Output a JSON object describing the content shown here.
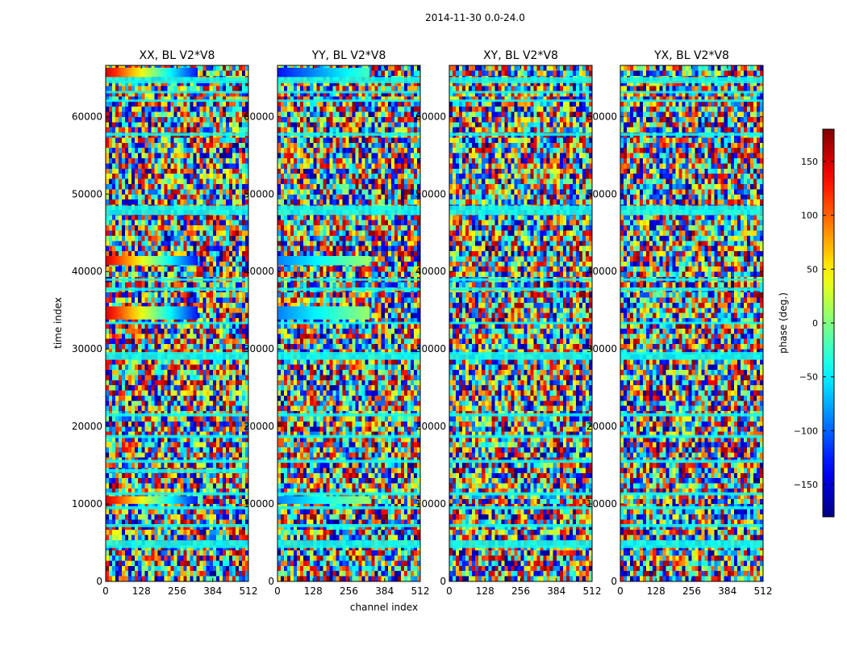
{
  "chart_data": {
    "type": "heatmap",
    "suptitle": "2014-11-30 0.0-24.0",
    "shared_xlabel": "channel index",
    "ylabel": "time index",
    "xlim": [
      0,
      512
    ],
    "ylim": [
      0,
      66600
    ],
    "x_ticks": [
      0,
      128,
      256,
      384,
      512
    ],
    "x_tick_labels": [
      "0",
      "128",
      "256",
      "384",
      "512"
    ],
    "y_ticks": [
      0,
      10000,
      20000,
      30000,
      40000,
      50000,
      60000
    ],
    "y_tick_labels": [
      "0",
      "10000",
      "20000",
      "30000",
      "40000",
      "50000",
      "60000"
    ],
    "panels": [
      {
        "title": "XX, BL V2*V8",
        "flag_bands": [
          [
            4300,
            5300,
            -40
          ],
          [
            7000,
            7400,
            -40
          ],
          [
            9300,
            9700,
            -40
          ],
          [
            11100,
            11500,
            -40
          ],
          [
            14000,
            14500,
            -40
          ],
          [
            15300,
            15700,
            -40
          ],
          [
            18500,
            18900,
            -40
          ],
          [
            21300,
            21700,
            -40
          ],
          [
            28600,
            29600,
            -40
          ],
          [
            33200,
            33500,
            -40
          ],
          [
            37500,
            37900,
            -40
          ],
          [
            38800,
            39100,
            -40
          ],
          [
            47300,
            48500,
            -40
          ],
          [
            57500,
            57900,
            -40
          ],
          [
            61900,
            62200,
            -40
          ],
          [
            63000,
            63300,
            -40
          ],
          [
            64300,
            65100,
            -40
          ]
        ],
        "gradient_bands": [
          {
            "t_range": [
              10000,
              11000
            ],
            "ch_range": [
              0,
              330
            ],
            "phase_start": 150,
            "phase_end": -130
          },
          {
            "t_range": [
              33800,
              35500
            ],
            "ch_range": [
              0,
              330
            ],
            "phase_start": 150,
            "phase_end": -130
          },
          {
            "t_range": [
              40800,
              42000
            ],
            "ch_range": [
              0,
              330
            ],
            "phase_start": 150,
            "phase_end": -130
          },
          {
            "t_range": [
              65100,
              66300
            ],
            "ch_range": [
              0,
              330
            ],
            "phase_start": 150,
            "phase_end": -130
          }
        ]
      },
      {
        "title": "YY, BL V2*V8",
        "flag_bands": [
          [
            4300,
            5300,
            -40
          ],
          [
            7000,
            7400,
            -40
          ],
          [
            9300,
            9700,
            -40
          ],
          [
            11100,
            11500,
            -40
          ],
          [
            15300,
            15700,
            -40
          ],
          [
            18500,
            18900,
            -40
          ],
          [
            21300,
            21700,
            -40
          ],
          [
            28600,
            29600,
            -40
          ],
          [
            33200,
            33500,
            -40
          ],
          [
            37500,
            37900,
            -40
          ],
          [
            38800,
            39100,
            -40
          ],
          [
            47300,
            48500,
            -40
          ],
          [
            57500,
            57900,
            -40
          ],
          [
            61900,
            62200,
            -40
          ],
          [
            63000,
            63300,
            -40
          ],
          [
            64300,
            65100,
            -40
          ]
        ],
        "gradient_bands": [
          {
            "t_range": [
              10000,
              11000
            ],
            "ch_range": [
              0,
              330
            ],
            "phase_start": -90,
            "phase_end": 10
          },
          {
            "t_range": [
              33800,
              35500
            ],
            "ch_range": [
              0,
              330
            ],
            "phase_start": -90,
            "phase_end": 10
          },
          {
            "t_range": [
              40800,
              42000
            ],
            "ch_range": [
              0,
              330
            ],
            "phase_start": -90,
            "phase_end": 10
          },
          {
            "t_range": [
              65100,
              66300
            ],
            "ch_range": [
              0,
              330
            ],
            "phase_start": -130,
            "phase_end": -20
          }
        ]
      },
      {
        "title": "XY, BL V2*V8",
        "flag_bands": [
          [
            4300,
            5300,
            -40
          ],
          [
            7000,
            7400,
            -40
          ],
          [
            9300,
            9700,
            -40
          ],
          [
            11100,
            11500,
            -40
          ],
          [
            15300,
            15700,
            -40
          ],
          [
            18500,
            18900,
            -40
          ],
          [
            21300,
            21700,
            -40
          ],
          [
            28600,
            29600,
            -40
          ],
          [
            33200,
            33500,
            -40
          ],
          [
            37500,
            37900,
            -40
          ],
          [
            38800,
            39100,
            -40
          ],
          [
            47300,
            48500,
            -40
          ],
          [
            57500,
            57900,
            -40
          ],
          [
            61900,
            62200,
            -40
          ],
          [
            63000,
            63300,
            -40
          ],
          [
            64300,
            65100,
            -40
          ]
        ],
        "gradient_bands": []
      },
      {
        "title": "YX, BL V2*V8",
        "flag_bands": [
          [
            4300,
            5300,
            -40
          ],
          [
            7000,
            7400,
            -40
          ],
          [
            9300,
            9700,
            -40
          ],
          [
            11100,
            11500,
            -40
          ],
          [
            15300,
            15700,
            -40
          ],
          [
            18500,
            18900,
            -40
          ],
          [
            21300,
            21700,
            -40
          ],
          [
            28600,
            29600,
            -40
          ],
          [
            33200,
            33500,
            -40
          ],
          [
            37500,
            37900,
            -40
          ],
          [
            38800,
            39100,
            -40
          ],
          [
            47300,
            48500,
            -40
          ],
          [
            57500,
            57900,
            -40
          ],
          [
            61900,
            62200,
            -40
          ],
          [
            63000,
            63300,
            -40
          ],
          [
            64300,
            65100,
            -40
          ]
        ],
        "gradient_bands": []
      }
    ],
    "colorbar": {
      "label": "phase (deg.)",
      "range": [
        -180,
        180
      ],
      "colormap": "jet",
      "ticks": [
        -150,
        -100,
        -50,
        0,
        50,
        100,
        150
      ],
      "tick_labels": [
        "−150",
        "−100",
        "−50",
        "0",
        "50",
        "100",
        "150"
      ]
    }
  }
}
